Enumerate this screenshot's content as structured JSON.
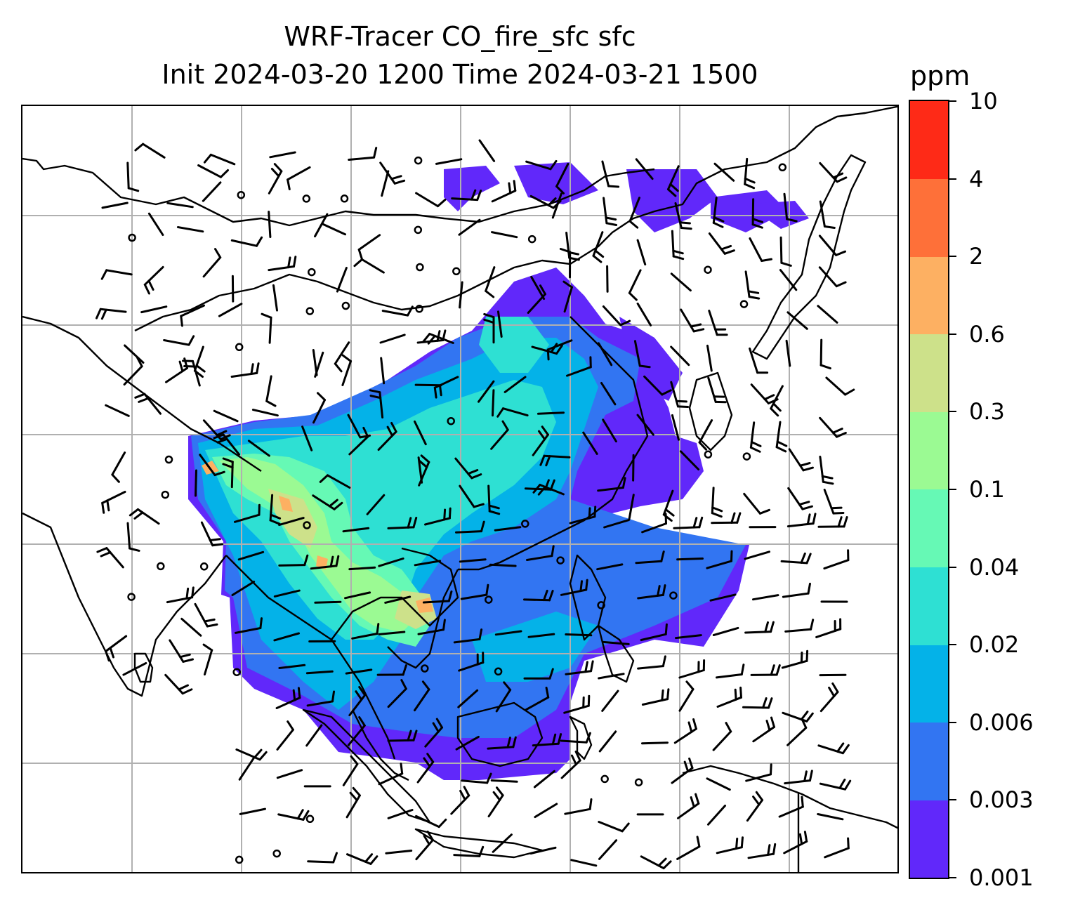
{
  "title": {
    "line1": "WRF-Tracer CO_fire_sfc sfc",
    "line2": "Init 2024-03-20 1200 Time 2024-03-21 1500"
  },
  "colorbar": {
    "unit": "ppm",
    "levels": [
      "0.001",
      "0.003",
      "0.006",
      "0.02",
      "0.04",
      "0.1",
      "0.3",
      "0.6",
      "2",
      "4",
      "10"
    ],
    "colors": [
      "#6128fa",
      "#3275f2",
      "#04b2e8",
      "#2ee0d3",
      "#66f9b5",
      "#9bfa93",
      "#cde18a",
      "#fdb062",
      "#fe7039",
      "#fe2a17"
    ]
  },
  "map": {
    "gridlines": true,
    "grid_color": "#b0b0b0",
    "coastline_color": "#000000",
    "field": "CO_fire_sfc",
    "wind_barbs": true,
    "calm_markers": true
  }
}
